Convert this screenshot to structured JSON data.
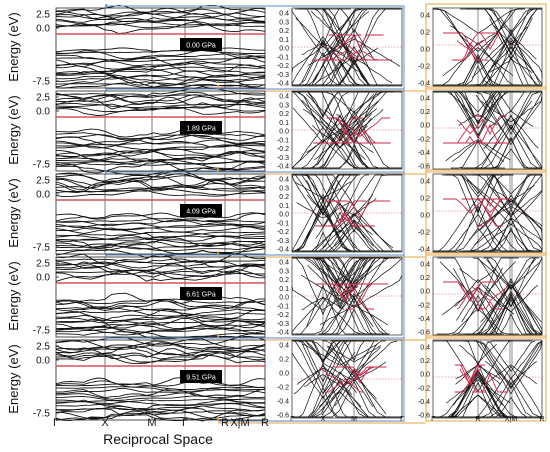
{
  "chart_data": {
    "type": "line",
    "x_axis_title": "Reciprocal Space",
    "y_axis_title": "Energy (eV)",
    "main_ticks": [
      "2.5",
      "0.0",
      "-7.5"
    ],
    "main_kpath": [
      "Γ",
      "X",
      "M",
      "Γ",
      "R",
      "X|M",
      "R"
    ],
    "zoomA_kpath": [
      "Γ",
      "X",
      "M",
      "Γ"
    ],
    "zoomB_kpath": [
      "Γ",
      "R",
      "X|M",
      "R"
    ],
    "accent_colors": {
      "bands": "#111111",
      "highlighted_bands": "#cc2a4a",
      "fermi_line": "#d6505a",
      "blue_frame": "#5a86c8",
      "orange_frame": "#e8a640",
      "label_background": "#000000"
    },
    "panels": [
      {
        "pressure": "0.00 GPa",
        "zoomA_ticks": [
          "0.4",
          "0.3",
          "0.2",
          "0.1",
          "0.0",
          "-0.1",
          "-0.2",
          "-0.3",
          "-0.4"
        ],
        "zoomB_ticks": [
          "0.4",
          "0.2",
          "0.0",
          "-0.2",
          "-0.4"
        ]
      },
      {
        "pressure": "1.89 GPa",
        "zoomA_ticks": [
          "0.4",
          "0.3",
          "0.2",
          "0.1",
          "0.0",
          "-0.1",
          "-0.2",
          "-0.3",
          "-0.4"
        ],
        "zoomB_ticks": [
          "0.4",
          "0.2",
          "0.0",
          "-0.2",
          "-0.4",
          "-0.6"
        ]
      },
      {
        "pressure": "4.09 GPa",
        "zoomA_ticks": [
          "0.4",
          "0.3",
          "0.2",
          "0.1",
          "0.0",
          "-0.1",
          "-0.2",
          "-0.3",
          "-0.4"
        ],
        "zoomB_ticks": [
          "0.4",
          "0.2",
          "0.0",
          "-0.2",
          "-0.4"
        ]
      },
      {
        "pressure": "6.61 GPa",
        "zoomA_ticks": [
          "0.4",
          "0.3",
          "0.2",
          "0.1",
          "0.0",
          "-0.1",
          "-0.2",
          "-0.3",
          "-0.4"
        ],
        "zoomB_ticks": [
          "0.4",
          "0.2",
          "0.0",
          "-0.2",
          "-0.4",
          "-0.6"
        ]
      },
      {
        "pressure": "9.51 GPa",
        "zoomA_ticks": [
          "0.4",
          "0.2",
          "0.0",
          "-0.2",
          "-0.4",
          "-0.6"
        ],
        "zoomB_ticks": [
          "0.4",
          "0.2",
          "0.0",
          "-0.2",
          "-0.4",
          "-0.6"
        ]
      }
    ]
  }
}
